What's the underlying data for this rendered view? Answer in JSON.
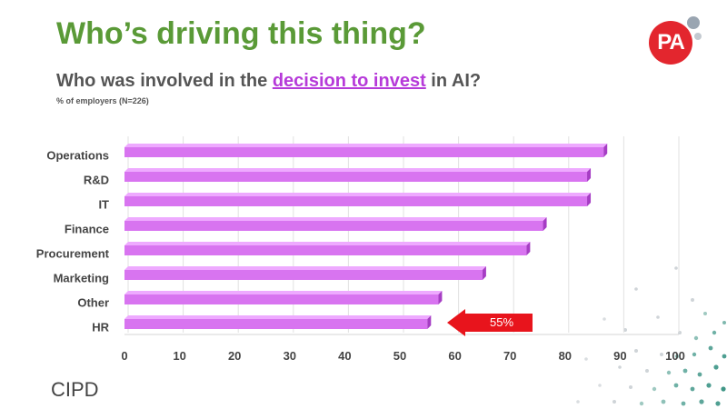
{
  "slide": {
    "title": "Who’s driving this thing?",
    "chart_title_pre": "Who was involved in the ",
    "chart_title_highlight": "decision to invest",
    "chart_title_post": " in AI?",
    "subtitle": "% of employers (N=226)",
    "logo_pa_text": "PA",
    "logo_cipd_text": "CIPD"
  },
  "callout": {
    "label": "55%",
    "color": "#e8141c"
  },
  "colors": {
    "bar": "#d874f0",
    "bar_top": "#eeaaff",
    "bar_side": "#a63dc4",
    "title": "#5a9a37",
    "highlight": "#b63ad9"
  },
  "chart_data": {
    "type": "bar",
    "orientation": "horizontal",
    "categories": [
      "Operations",
      "R&D",
      "IT",
      "Finance",
      "Procurement",
      "Marketing",
      "Other",
      "HR"
    ],
    "values": [
      87,
      84,
      84,
      76,
      73,
      65,
      57,
      55
    ],
    "title": "Who was involved in the decision to invest in AI?",
    "subtitle": "% of employers (N=226)",
    "xlim": [
      0,
      100
    ],
    "xticks": [
      0,
      10,
      20,
      30,
      40,
      50,
      60,
      70,
      80,
      90,
      100
    ],
    "grid": true
  }
}
